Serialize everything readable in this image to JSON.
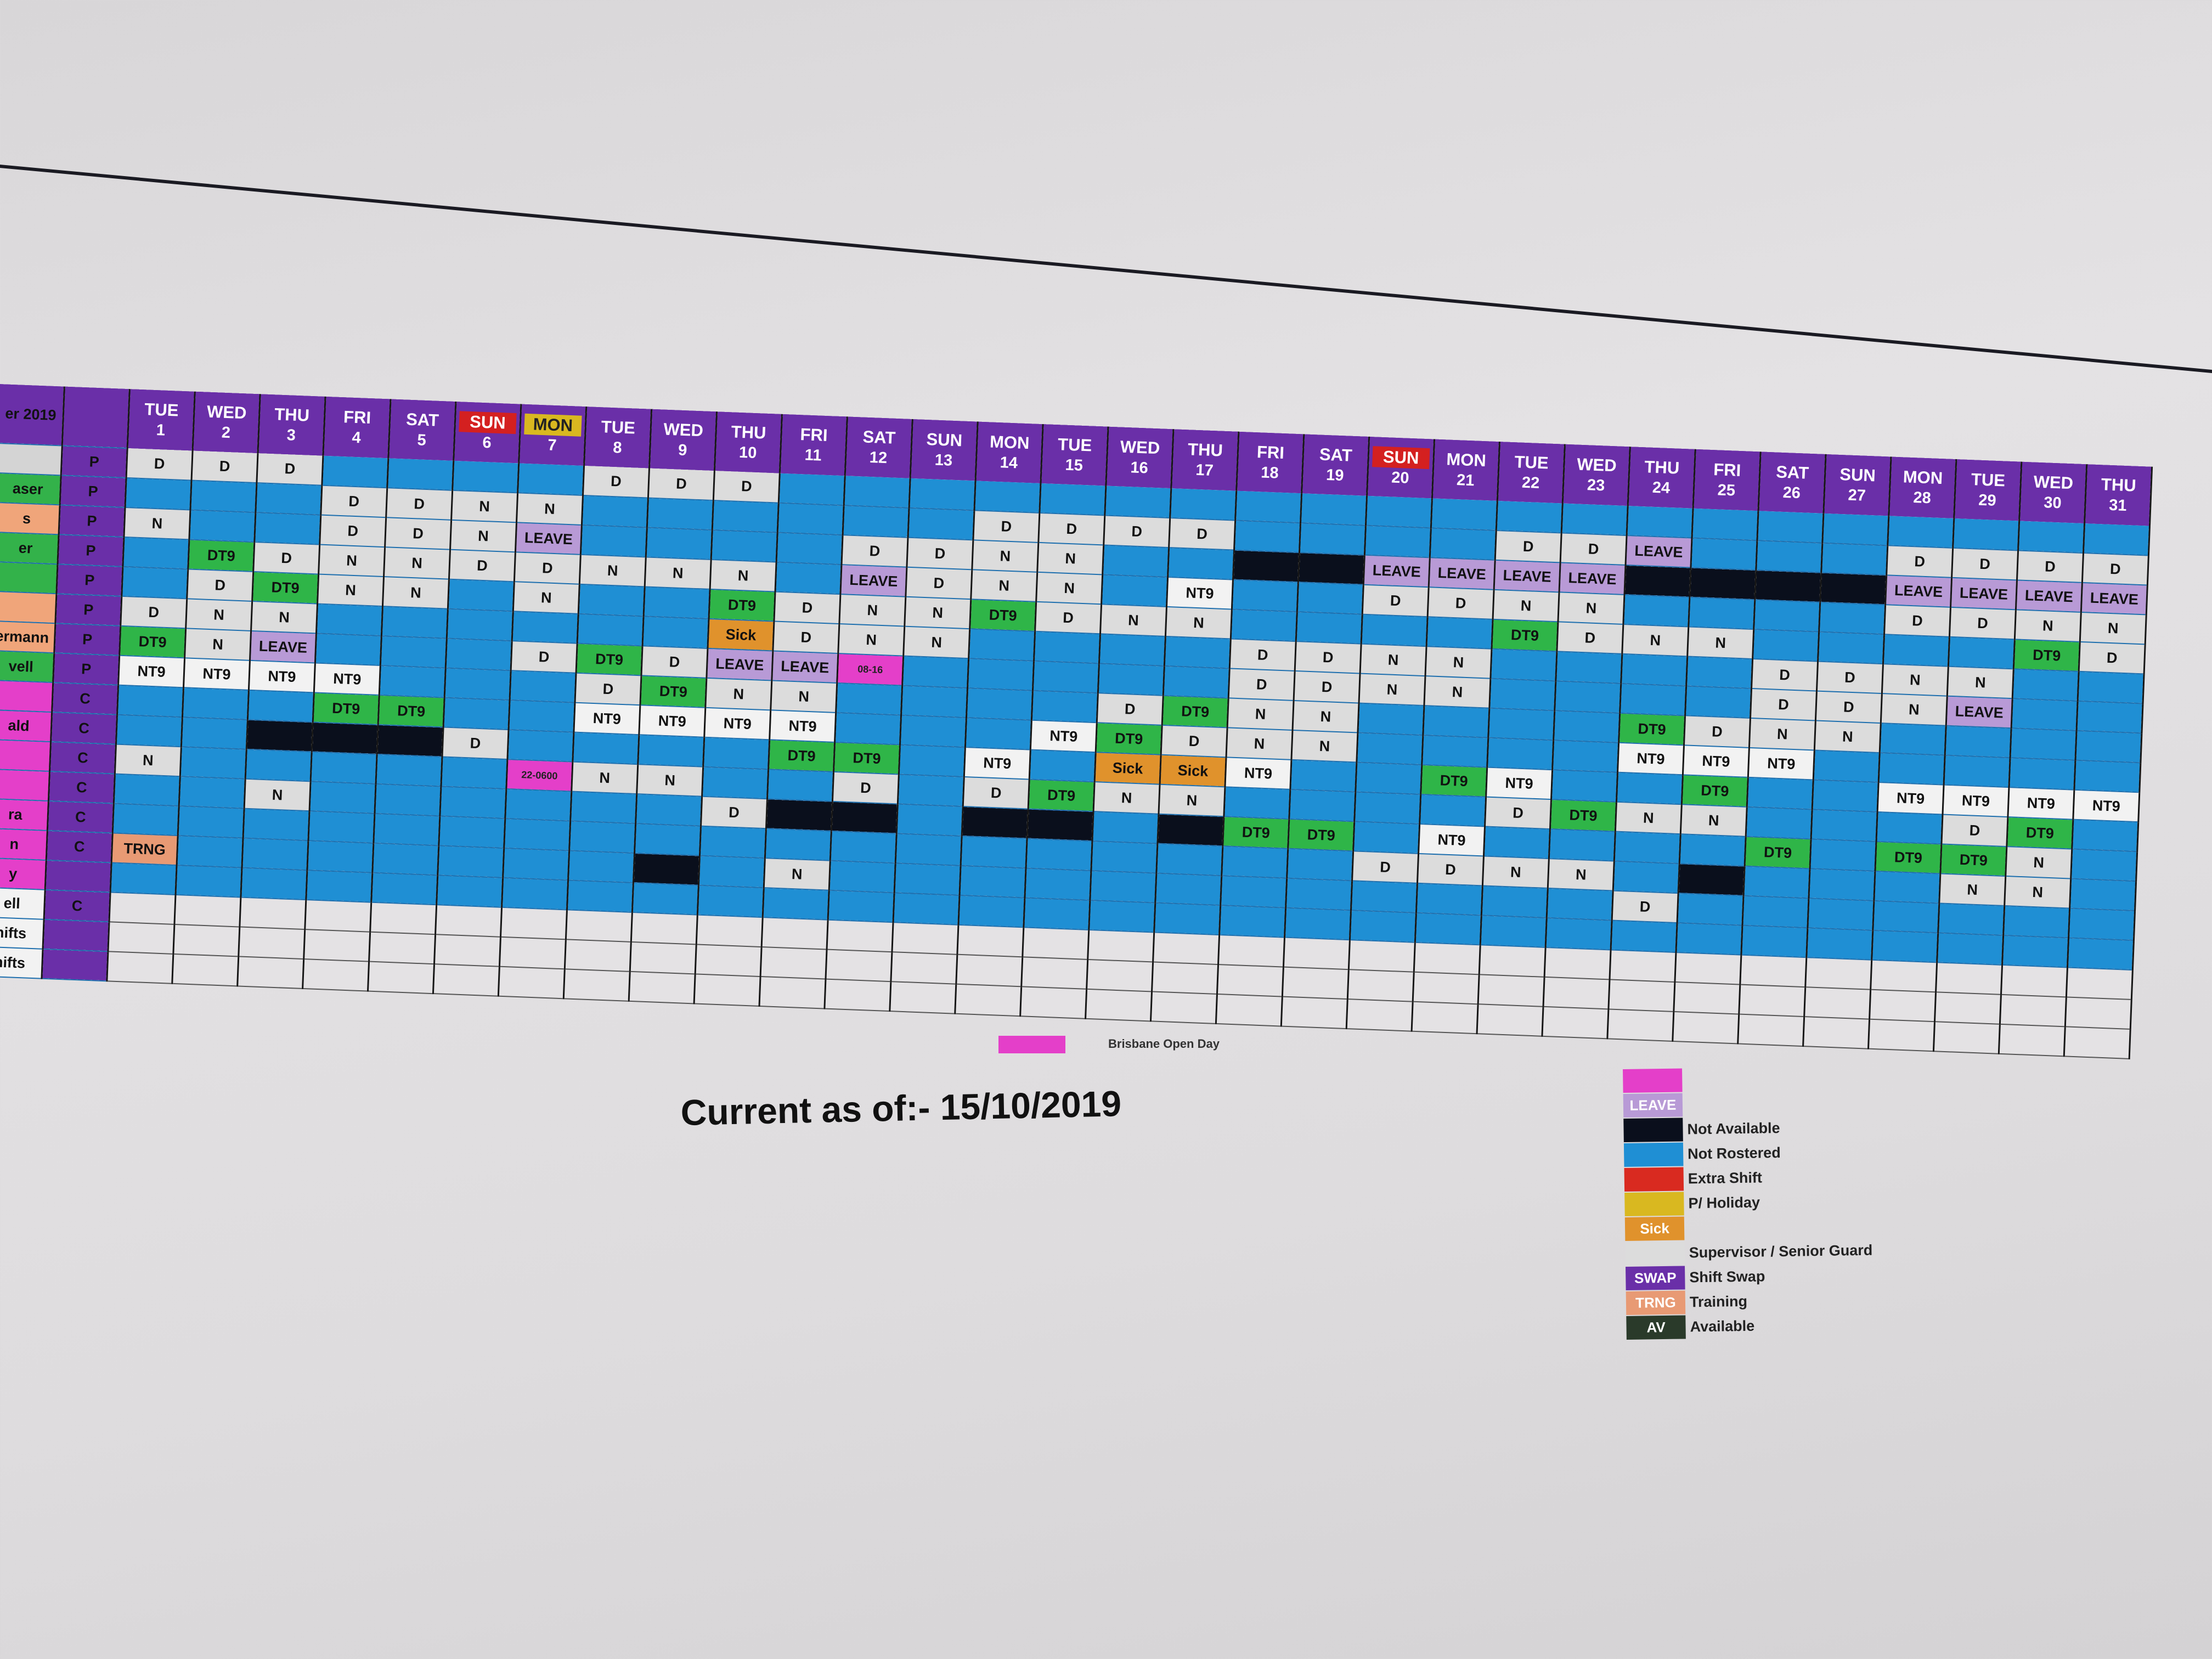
{
  "app": {
    "title_fragment": "er 2019"
  },
  "columns": [
    {
      "dow": "TUE",
      "day": "1"
    },
    {
      "dow": "WED",
      "day": "2"
    },
    {
      "dow": "THU",
      "day": "3"
    },
    {
      "dow": "FRI",
      "day": "4"
    },
    {
      "dow": "SAT",
      "day": "5"
    },
    {
      "dow": "SUN",
      "day": "6",
      "tag": "sun"
    },
    {
      "dow": "MON",
      "day": "7",
      "tag": "hol"
    },
    {
      "dow": "TUE",
      "day": "8"
    },
    {
      "dow": "WED",
      "day": "9"
    },
    {
      "dow": "THU",
      "day": "10"
    },
    {
      "dow": "FRI",
      "day": "11"
    },
    {
      "dow": "SAT",
      "day": "12"
    },
    {
      "dow": "SUN",
      "day": "13"
    },
    {
      "dow": "MON",
      "day": "14"
    },
    {
      "dow": "TUE",
      "day": "15"
    },
    {
      "dow": "WED",
      "day": "16"
    },
    {
      "dow": "THU",
      "day": "17"
    },
    {
      "dow": "FRI",
      "day": "18"
    },
    {
      "dow": "SAT",
      "day": "19"
    },
    {
      "dow": "SUN",
      "day": "20",
      "tag": "sun"
    },
    {
      "dow": "MON",
      "day": "21"
    },
    {
      "dow": "TUE",
      "day": "22"
    },
    {
      "dow": "WED",
      "day": "23"
    },
    {
      "dow": "THU",
      "day": "24"
    },
    {
      "dow": "FRI",
      "day": "25"
    },
    {
      "dow": "SAT",
      "day": "26"
    },
    {
      "dow": "SUN",
      "day": "27"
    },
    {
      "dow": "MON",
      "day": "28"
    },
    {
      "dow": "TUE",
      "day": "29"
    },
    {
      "dow": "WED",
      "day": "30"
    },
    {
      "dow": "THU",
      "day": "31"
    }
  ],
  "rows": [
    {
      "name": "",
      "color": "blank",
      "type": "P",
      "cells": [
        "D",
        "D",
        "D",
        "",
        "",
        "",
        "",
        "D",
        "D",
        "D",
        "",
        "",
        "",
        "",
        "",
        "",
        "",
        "",
        "",
        "",
        "",
        "",
        "",
        "",
        "",
        "",
        "",
        "",
        "",
        "",
        ""
      ]
    },
    {
      "name": "aser",
      "color": "green",
      "type": "P",
      "cells": [
        "",
        "",
        "",
        "D",
        "D",
        "N",
        "N",
        "",
        "",
        "",
        "",
        "",
        "",
        "D",
        "D",
        "D",
        "D",
        "",
        "",
        "",
        "",
        "D",
        "D",
        "LEAVE",
        "",
        "",
        "",
        "D",
        "D",
        "D",
        "D"
      ]
    },
    {
      "name": "s",
      "color": "peach",
      "type": "P",
      "cells": [
        "N",
        "",
        "",
        "D",
        "D",
        "N",
        "LEAVE",
        "",
        "",
        "",
        "",
        "D",
        "D",
        "N",
        "N",
        "",
        "",
        "NA",
        "NA",
        "LEAVE",
        "LEAVE",
        "LEAVE",
        "LEAVE",
        "NA",
        "NA",
        "NA",
        "NA",
        "LEAVE",
        "LEAVE",
        "LEAVE",
        "LEAVE"
      ]
    },
    {
      "name": "er",
      "color": "green",
      "type": "P",
      "cells": [
        "",
        "DT9",
        "D",
        "N",
        "N",
        "D",
        "D",
        "N",
        "N",
        "N",
        "",
        "LEAVE",
        "D",
        "N",
        "N",
        "",
        "NT9",
        "",
        "",
        "D",
        "D",
        "N",
        "N",
        "",
        "",
        "",
        "",
        "D",
        "D",
        "N",
        "N"
      ]
    },
    {
      "name": "",
      "color": "green",
      "type": "P",
      "cells": [
        "",
        "D",
        "DT9",
        "N",
        "N",
        "",
        "N",
        "",
        "",
        "DT9",
        "D",
        "N",
        "N",
        "DT9",
        "D",
        "N",
        "N",
        "",
        "",
        "",
        "",
        "DT9",
        "D",
        "N",
        "N",
        "",
        "",
        "",
        "",
        "DT9",
        "D"
      ]
    },
    {
      "name": "",
      "color": "peach",
      "type": "P",
      "cells": [
        "D",
        "N",
        "N",
        "",
        "",
        "",
        "",
        "",
        "",
        "Sick",
        "D",
        "N",
        "N",
        "",
        "",
        "",
        "",
        "D",
        "D",
        "N",
        "N",
        "",
        "",
        "",
        "",
        "D",
        "D",
        "N",
        "N",
        "",
        ""
      ]
    },
    {
      "name": "ermann",
      "color": "peach",
      "type": "P",
      "cells": [
        "DT9",
        "N",
        "LEAVE",
        "",
        "",
        "",
        "D",
        "DT9",
        "D",
        "LEAVE",
        "LEAVE",
        "08-16",
        "",
        "",
        "",
        "",
        "",
        "D",
        "D",
        "N",
        "N",
        "",
        "",
        "",
        "",
        "D",
        "D",
        "N",
        "LEAVE",
        "",
        ""
      ]
    },
    {
      "name": "vell",
      "color": "green",
      "type": "P",
      "cells": [
        "NT9",
        "NT9",
        "NT9",
        "NT9",
        "",
        "",
        "",
        "D",
        "DT9",
        "N",
        "N",
        "",
        "",
        "",
        "",
        "D",
        "DT9",
        "N",
        "N",
        "",
        "",
        "",
        "",
        "DT9",
        "D",
        "N",
        "N",
        "",
        "",
        "",
        ""
      ]
    },
    {
      "name": "",
      "color": "magenta",
      "type": "C",
      "cells": [
        "",
        "",
        "",
        "DT9",
        "DT9",
        "",
        "",
        "NT9",
        "NT9",
        "NT9",
        "NT9",
        "",
        "",
        "",
        "NT9",
        "DT9",
        "D",
        "N",
        "N",
        "",
        "",
        "",
        "",
        "NT9",
        "NT9",
        "NT9",
        "",
        "",
        "",
        "",
        ""
      ]
    },
    {
      "name": "ald",
      "color": "magenta",
      "type": "C",
      "cells": [
        "",
        "",
        "NA",
        "NA",
        "NA",
        "D",
        "",
        "",
        "",
        "",
        "DT9",
        "DT9",
        "",
        "NT9",
        "",
        "Sick",
        "Sick",
        "NT9",
        "",
        "",
        "DT9",
        "NT9",
        "",
        "",
        "DT9",
        "",
        "",
        "NT9",
        "NT9",
        "NT9",
        "NT9"
      ]
    },
    {
      "name": "",
      "color": "magenta",
      "type": "C",
      "cells": [
        "N",
        "",
        "",
        "",
        "",
        "",
        "22-0600",
        "N",
        "N",
        "",
        "",
        "D",
        "",
        "D",
        "DT9",
        "N",
        "N",
        "",
        "",
        "",
        "",
        "D",
        "DT9",
        "N",
        "N",
        "",
        "",
        "",
        "D",
        "DT9",
        ""
      ]
    },
    {
      "name": "",
      "color": "magenta",
      "type": "C",
      "cells": [
        "",
        "",
        "N",
        "",
        "",
        "",
        "",
        "",
        "",
        "D",
        "NA",
        "NA",
        "",
        "NA",
        "NA",
        "",
        "NA",
        "DT9",
        "DT9",
        "",
        "NT9",
        "",
        "",
        "",
        "",
        "DT9",
        "",
        "DT9",
        "DT9",
        "N",
        ""
      ]
    },
    {
      "name": "ra",
      "color": "magenta",
      "type": "C",
      "cells": [
        "",
        "",
        "",
        "",
        "",
        "",
        "",
        "",
        "",
        "",
        "",
        "",
        "",
        "",
        "",
        "",
        "",
        "",
        "",
        "D",
        "D",
        "N",
        "N",
        "",
        "NA",
        "",
        "",
        "",
        "N",
        "N",
        ""
      ]
    },
    {
      "name": "n",
      "color": "magenta",
      "type": "C",
      "cells": [
        "TRNG",
        "",
        "",
        "",
        "",
        "",
        "",
        "",
        "NA",
        "",
        "N",
        "",
        "",
        "",
        "",
        "",
        "",
        "",
        "",
        "",
        "",
        "",
        "",
        "D",
        "",
        "",
        "",
        "",
        "",
        "",
        ""
      ]
    },
    {
      "name": "y",
      "color": "magenta",
      "type": "",
      "cells": [
        "",
        "",
        "",
        "",
        "",
        "",
        "",
        "",
        "",
        "",
        "",
        "",
        "",
        "",
        "",
        "",
        "",
        "",
        "",
        "",
        "",
        "",
        "",
        "",
        "",
        "",
        "",
        "",
        "",
        "",
        ""
      ]
    }
  ],
  "footer_rows": [
    {
      "name": "ell",
      "type": "C"
    },
    {
      "name": "hifts",
      "type": ""
    },
    {
      "name": "hifts",
      "type": ""
    }
  ],
  "open_day_label": "Brisbane Open Day",
  "current_as_of": "Current as of:- 15/10/2019",
  "legend": [
    {
      "swatch": "",
      "color": "#e43fc9",
      "text": ""
    },
    {
      "swatch": "LEAVE",
      "color": "#b89ad6",
      "text": ""
    },
    {
      "swatch": "",
      "color": "#0a0f1c",
      "text": "Not Available"
    },
    {
      "swatch": "",
      "color": "#1f8fd4",
      "text": "Not Rostered"
    },
    {
      "swatch": "",
      "color": "#d92a20",
      "text": "Extra Shift"
    },
    {
      "swatch": "",
      "color": "#d9b820",
      "text": "P/ Holiday"
    },
    {
      "swatch": "Sick",
      "color": "#e0922c",
      "text": ""
    },
    {
      "swatch": "",
      "color": "#dcdcdc",
      "text": "Supervisor / Senior Guard"
    },
    {
      "swatch": "SWAP",
      "color": "#6a2fa8",
      "text": "Shift Swap"
    },
    {
      "swatch": "TRNG",
      "color": "#e89a74",
      "text": "Training"
    },
    {
      "swatch": "AV",
      "color": "#2a3a2a",
      "text": "Available"
    }
  ]
}
